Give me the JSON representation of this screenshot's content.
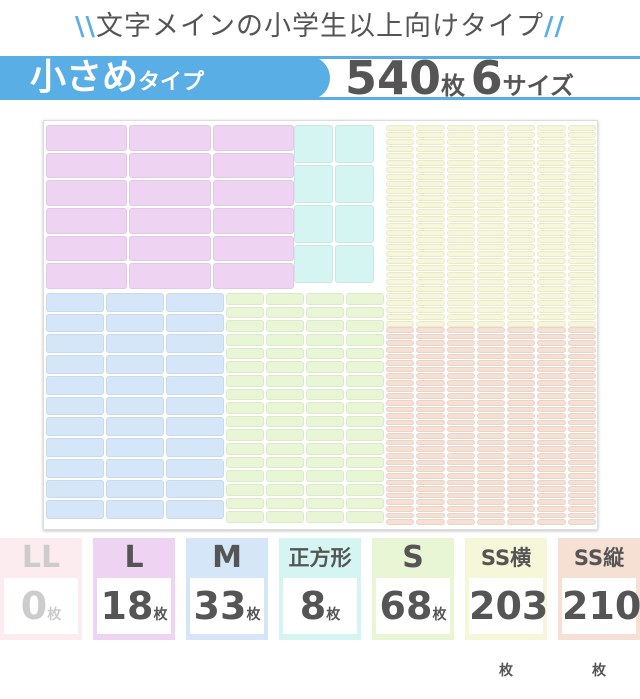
{
  "header": {
    "subtitle": "文字メインの小学生以上向けタイプ",
    "type_big": "小さめ",
    "type_small": "タイプ",
    "total_count": "540",
    "total_unit": "枚",
    "sizes_count": "6",
    "sizes_unit": "サイズ",
    "accent": "#5aaee6"
  },
  "sizes": [
    {
      "name": "LL",
      "count": "0",
      "unit": "枚",
      "color": "#fdecef"
    },
    {
      "name": "L",
      "count": "18",
      "unit": "枚",
      "color": "#efd3f3"
    },
    {
      "name": "M",
      "count": "33",
      "unit": "枚",
      "color": "#d4e6f8"
    },
    {
      "name": "正方形",
      "count": "8",
      "unit": "枚",
      "color": "#d4f5f2"
    },
    {
      "name": "S",
      "count": "68",
      "unit": "枚",
      "color": "#e8f6d6"
    },
    {
      "name": "SS横",
      "count": "203",
      "unit": "枚",
      "color": "#f6f7d8"
    },
    {
      "name": "SS縦",
      "count": "210",
      "unit": "枚",
      "color": "#f5e0d3"
    }
  ]
}
